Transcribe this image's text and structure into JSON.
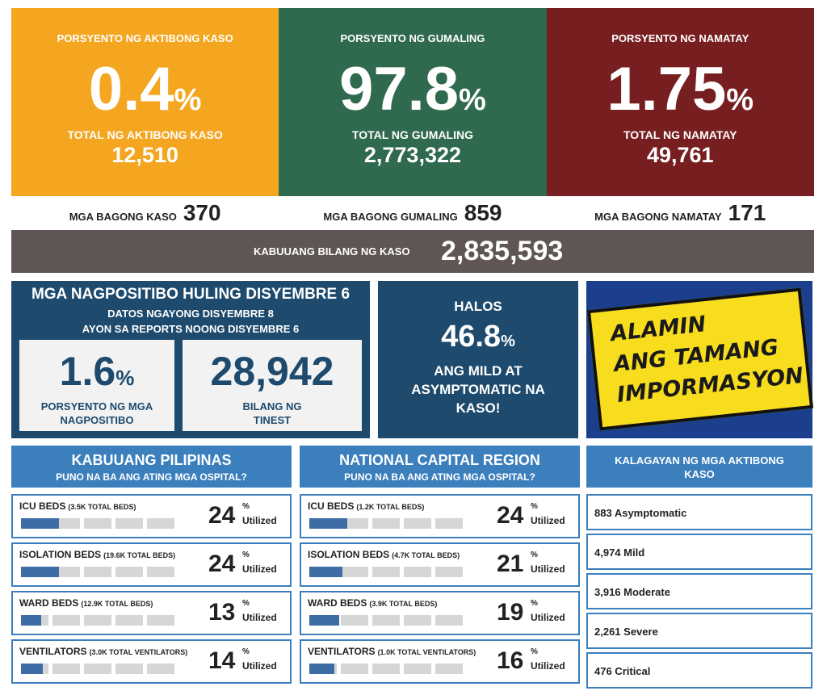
{
  "top_stats": [
    {
      "label": "PORSYENTO NG AKTIBONG KASO",
      "percent": "0.4",
      "unit": "%",
      "total_label": "TOTAL NG AKTIBONG KASO",
      "total": "12,510",
      "new_label": "MGA BAGONG KASO",
      "new": "370",
      "color": "#f4a620"
    },
    {
      "label": "PORSYENTO NG GUMALING",
      "percent": "97.8",
      "unit": "%",
      "total_label": "TOTAL NG GUMALING",
      "total": "2,773,322",
      "new_label": "MGA BAGONG GUMALING",
      "new": "859",
      "color": "#2f6a4f"
    },
    {
      "label": "PORSYENTO NG NAMATAY",
      "percent": "1.75",
      "unit": "%",
      "total_label": "TOTAL NG NAMATAY",
      "total": "49,761",
      "new_label": "MGA BAGONG NAMATAY",
      "new": "171",
      "color": "#771f20"
    }
  ],
  "total_cases": {
    "label": "KABUUANG BILANG NG KASO",
    "value": "2,835,593"
  },
  "positivity": {
    "title": "MGA NAGPOSITIBO HULING DISYEMBRE 6",
    "subtitle": "DATOS NGAYONG DISYEMBRE 8",
    "subtitle2": "AYON SA REPORTS NOONG DISYEMBRE 6",
    "rate": {
      "value": "1.6",
      "unit": "%",
      "label": "PORSYENTO NG MGA NAGPOSITIBO"
    },
    "tested": {
      "value": "28,942",
      "label": "BILANG NG TINEST"
    }
  },
  "mild": {
    "pre": "HALOS",
    "value": "46.8",
    "unit": "%",
    "text": "ANG MILD AT ASYMPTOMATIC NA KASO!"
  },
  "banner": {
    "line1": "ALAMIN",
    "line2": "ANG TAMANG",
    "line3": "IMPORMASYON"
  },
  "hospitals": [
    {
      "title": "KABUUANG PILIPINAS",
      "subtitle": "PUNO NA BA ANG ATING MGA OSPITAL?",
      "rows": [
        {
          "label": "ICU BEDS",
          "capacity": "(3.5K TOTAL BEDS)",
          "percent": 24,
          "unit": "%",
          "status": "Utilized"
        },
        {
          "label": "ISOLATION BEDS",
          "capacity": "(19.6K TOTAL BEDS)",
          "percent": 24,
          "unit": "%",
          "status": "Utilized"
        },
        {
          "label": "WARD BEDS",
          "capacity": "(12.9K TOTAL BEDS)",
          "percent": 13,
          "unit": "%",
          "status": "Utilized"
        },
        {
          "label": "VENTILATORS",
          "capacity": "(3.0K TOTAL VENTILATORS)",
          "percent": 14,
          "unit": "%",
          "status": "Utilized"
        }
      ]
    },
    {
      "title": "NATIONAL CAPITAL REGION",
      "subtitle": "PUNO NA BA ANG ATING MGA OSPITAL?",
      "rows": [
        {
          "label": "ICU BEDS",
          "capacity": "(1.2K TOTAL BEDS)",
          "percent": 24,
          "unit": "%",
          "status": "Utilized"
        },
        {
          "label": "ISOLATION BEDS",
          "capacity": "(4.7K TOTAL BEDS)",
          "percent": 21,
          "unit": "%",
          "status": "Utilized"
        },
        {
          "label": "WARD BEDS",
          "capacity": "(3.9K TOTAL BEDS)",
          "percent": 19,
          "unit": "%",
          "status": "Utilized"
        },
        {
          "label": "VENTILATORS",
          "capacity": "(1.0K TOTAL VENTILATORS)",
          "percent": 16,
          "unit": "%",
          "status": "Utilized"
        }
      ]
    }
  ],
  "active_cases": {
    "title": "KALAGAYAN NG MGA AKTIBONG KASO",
    "items": [
      "883 Asymptomatic",
      "4,974 Mild",
      "3,916 Moderate",
      "2,261 Severe",
      "476 Critical"
    ]
  }
}
